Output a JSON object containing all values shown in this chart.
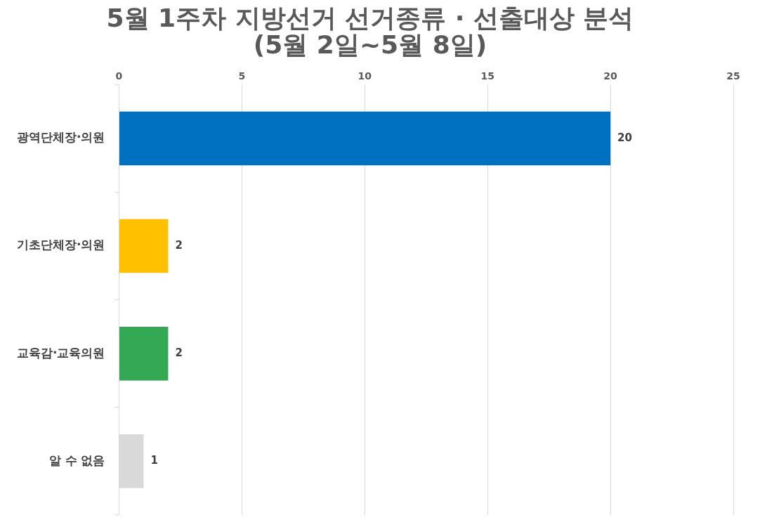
{
  "chart_data": {
    "type": "bar",
    "orientation": "horizontal",
    "title": "5월 1주차 지방선거 선거종류 · 선출대상 분석",
    "subtitle": "(5월 2일~5월 8일)",
    "categories": [
      "광역단체장·의원",
      "기초단체장·의원",
      "교육감·교육의원",
      "알 수 없음"
    ],
    "values": [
      20,
      2,
      2,
      1
    ],
    "colors": [
      "#0070c0",
      "#ffc000",
      "#34a853",
      "#d9d9d9"
    ],
    "xlim": [
      0,
      25
    ],
    "xticks": [
      0,
      5,
      10,
      15,
      20,
      25
    ],
    "grid": "x",
    "data_labels": true
  }
}
